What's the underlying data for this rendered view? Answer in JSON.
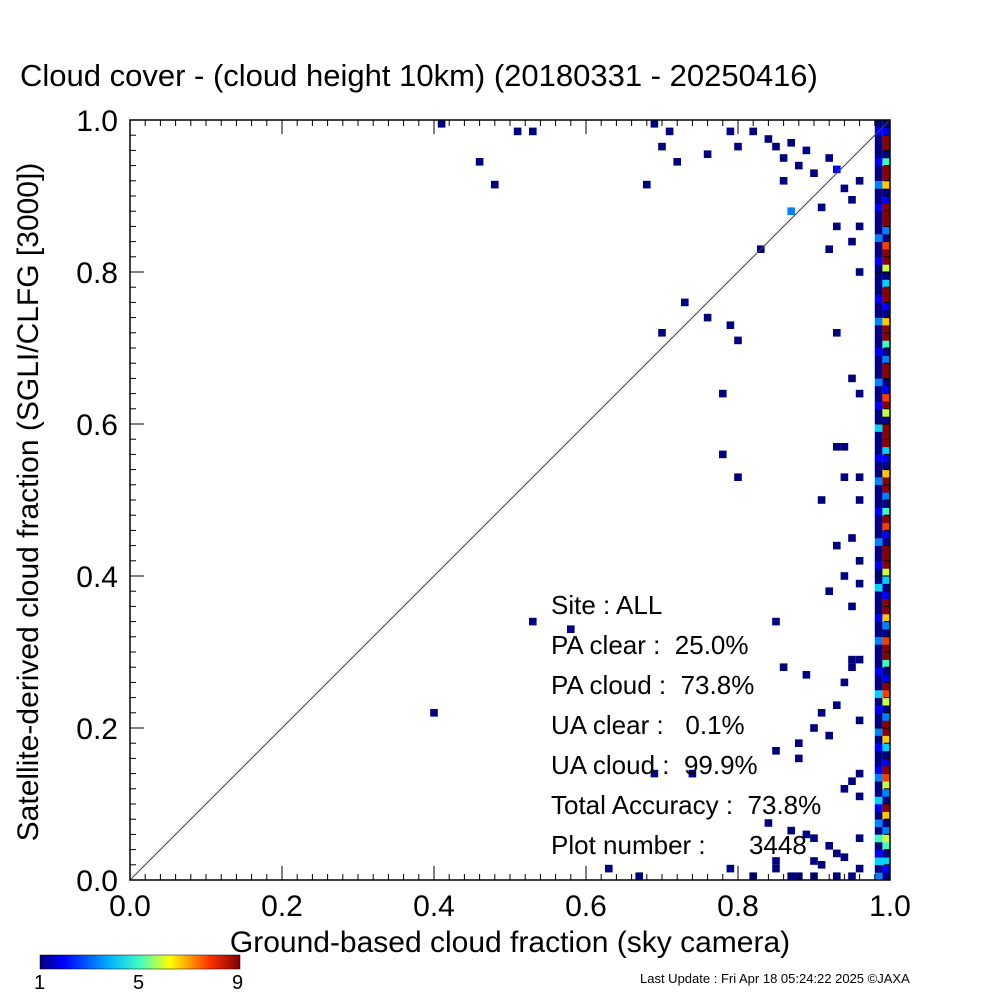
{
  "chart_data": {
    "type": "heatmap",
    "title": "Cloud cover - (cloud height 10km)  (20180331 - 20250416)",
    "xlabel": "Ground-based cloud fraction (sky camera)",
    "ylabel": "Satellite-derived cloud fraction (SGLI/CLFG [3000])",
    "xlim": [
      0.0,
      1.0
    ],
    "ylim": [
      0.0,
      1.0
    ],
    "xticks": [
      "0.0",
      "0.2",
      "0.4",
      "0.6",
      "0.8",
      "1.0"
    ],
    "yticks": [
      "0.0",
      "0.2",
      "0.4",
      "0.6",
      "0.8",
      "1.0"
    ],
    "grid": false,
    "reference_line": "y = x",
    "colorbar": {
      "min": 1,
      "max": 9,
      "tick_labels": [
        "1",
        "5",
        "9"
      ]
    },
    "points": [
      [
        0.41,
        0.995,
        1
      ],
      [
        0.51,
        0.985,
        1
      ],
      [
        0.53,
        0.985,
        1
      ],
      [
        0.69,
        0.995,
        1
      ],
      [
        0.71,
        0.985,
        1
      ],
      [
        0.46,
        0.945,
        1
      ],
      [
        0.48,
        0.915,
        1
      ],
      [
        0.68,
        0.915,
        1
      ],
      [
        0.7,
        0.965,
        1
      ],
      [
        0.72,
        0.945,
        1
      ],
      [
        0.76,
        0.955,
        1
      ],
      [
        0.79,
        0.985,
        1
      ],
      [
        0.8,
        0.965,
        1
      ],
      [
        0.82,
        0.985,
        1
      ],
      [
        0.84,
        0.975,
        1
      ],
      [
        0.85,
        0.965,
        1
      ],
      [
        0.86,
        0.95,
        1
      ],
      [
        0.87,
        0.97,
        1
      ],
      [
        0.88,
        0.94,
        1
      ],
      [
        0.89,
        0.96,
        1
      ],
      [
        0.86,
        0.92,
        1
      ],
      [
        0.87,
        0.88,
        3
      ],
      [
        0.83,
        0.83,
        1
      ],
      [
        0.91,
        0.885,
        1
      ],
      [
        0.9,
        0.93,
        1
      ],
      [
        0.92,
        0.95,
        1
      ],
      [
        0.93,
        0.935,
        2
      ],
      [
        0.94,
        0.91,
        1
      ],
      [
        0.95,
        0.895,
        1
      ],
      [
        0.96,
        0.92,
        1
      ],
      [
        0.93,
        0.86,
        1
      ],
      [
        0.92,
        0.83,
        1
      ],
      [
        0.96,
        0.86,
        1
      ],
      [
        0.95,
        0.84,
        1
      ],
      [
        0.96,
        0.8,
        1
      ],
      [
        0.73,
        0.76,
        1
      ],
      [
        0.7,
        0.72,
        1
      ],
      [
        0.76,
        0.74,
        1
      ],
      [
        0.79,
        0.73,
        1
      ],
      [
        0.8,
        0.71,
        1
      ],
      [
        0.93,
        0.72,
        1
      ],
      [
        0.78,
        0.64,
        1
      ],
      [
        0.95,
        0.66,
        1
      ],
      [
        0.96,
        0.64,
        1
      ],
      [
        0.93,
        0.57,
        1
      ],
      [
        0.94,
        0.57,
        1
      ],
      [
        0.78,
        0.56,
        1
      ],
      [
        0.8,
        0.53,
        1
      ],
      [
        0.94,
        0.53,
        1
      ],
      [
        0.96,
        0.53,
        1
      ],
      [
        0.96,
        0.5,
        1
      ],
      [
        0.91,
        0.5,
        1
      ],
      [
        0.93,
        0.44,
        1
      ],
      [
        0.95,
        0.45,
        1
      ],
      [
        0.96,
        0.42,
        1
      ],
      [
        0.94,
        0.4,
        1
      ],
      [
        0.96,
        0.39,
        1
      ],
      [
        0.92,
        0.38,
        1
      ],
      [
        0.95,
        0.36,
        1
      ],
      [
        0.53,
        0.34,
        1
      ],
      [
        0.58,
        0.33,
        1
      ],
      [
        0.85,
        0.34,
        1
      ],
      [
        0.95,
        0.29,
        1
      ],
      [
        0.96,
        0.29,
        1
      ],
      [
        0.95,
        0.28,
        1
      ],
      [
        0.86,
        0.28,
        1
      ],
      [
        0.89,
        0.27,
        1
      ],
      [
        0.94,
        0.26,
        1
      ],
      [
        0.4,
        0.22,
        1
      ],
      [
        0.91,
        0.22,
        1
      ],
      [
        0.93,
        0.23,
        1
      ],
      [
        0.96,
        0.21,
        1
      ],
      [
        0.9,
        0.2,
        1
      ],
      [
        0.92,
        0.19,
        1
      ],
      [
        0.88,
        0.18,
        1
      ],
      [
        0.85,
        0.17,
        1
      ],
      [
        0.88,
        0.16,
        1
      ],
      [
        0.69,
        0.14,
        1
      ],
      [
        0.74,
        0.14,
        1
      ],
      [
        0.96,
        0.14,
        1
      ],
      [
        0.95,
        0.13,
        1
      ],
      [
        0.94,
        0.12,
        1
      ],
      [
        0.96,
        0.11,
        1
      ],
      [
        0.84,
        0.075,
        1
      ],
      [
        0.87,
        0.065,
        1
      ],
      [
        0.89,
        0.06,
        1
      ],
      [
        0.9,
        0.055,
        1
      ],
      [
        0.92,
        0.045,
        1
      ],
      [
        0.93,
        0.035,
        1
      ],
      [
        0.96,
        0.055,
        1
      ],
      [
        0.9,
        0.025,
        1
      ],
      [
        0.91,
        0.02,
        1
      ],
      [
        0.94,
        0.03,
        1
      ],
      [
        0.85,
        0.025,
        1
      ],
      [
        0.85,
        0.015,
        1
      ],
      [
        0.63,
        0.015,
        1
      ],
      [
        0.67,
        0.005,
        1
      ],
      [
        0.79,
        0.015,
        1
      ],
      [
        0.82,
        0.005,
        1
      ],
      [
        0.87,
        0.005,
        1
      ],
      [
        0.88,
        0.005,
        1
      ],
      [
        0.9,
        0.005,
        1
      ],
      [
        0.93,
        0.005,
        1
      ],
      [
        0.95,
        0.005,
        1
      ],
      [
        0.96,
        0.015,
        1
      ]
    ],
    "right_edge_column": [
      1,
      2,
      4,
      1,
      5,
      6,
      3,
      1,
      7,
      9,
      1,
      3,
      6,
      8,
      9,
      2,
      1,
      4,
      7,
      9,
      9,
      3,
      1,
      6,
      8,
      9,
      2,
      1,
      5,
      9,
      9,
      8,
      1,
      3,
      7,
      9,
      9,
      2,
      1,
      4,
      6,
      9,
      9,
      9,
      1,
      2,
      8,
      9,
      5,
      1,
      3,
      9,
      9,
      7,
      1,
      2,
      4,
      9,
      9,
      9,
      1,
      6,
      9,
      8,
      2,
      1,
      9,
      9,
      3,
      1,
      5,
      9,
      9,
      7,
      1,
      2,
      9,
      9,
      4,
      1,
      6,
      9,
      9,
      8,
      1,
      3,
      9,
      9,
      9,
      2,
      1,
      7,
      9,
      9,
      5,
      1,
      9,
      9,
      2,
      1
    ],
    "near_edge_column": [
      3,
      1,
      4,
      2,
      1,
      5,
      1,
      3,
      1,
      2,
      4,
      1,
      1,
      3,
      2,
      1,
      1,
      2,
      1,
      3,
      1,
      1,
      2,
      1,
      4,
      1,
      1,
      2,
      1,
      1,
      1,
      3,
      1,
      1,
      2,
      1,
      1,
      1,
      4,
      1,
      1,
      2,
      1,
      1,
      3,
      1,
      1,
      1,
      2,
      1,
      1,
      1,
      3,
      1,
      1,
      2,
      1,
      1,
      1,
      4,
      1,
      1,
      2,
      1,
      1,
      3,
      1,
      1,
      1,
      2,
      1,
      1,
      1,
      3,
      1,
      1,
      2,
      1,
      1,
      1,
      1,
      2,
      1,
      1,
      3,
      1,
      1,
      1,
      2,
      1,
      1,
      3,
      1,
      1,
      2,
      1,
      1,
      1,
      2,
      1
    ]
  },
  "stats": {
    "site": "Site : ALL",
    "pa_clear": "PA clear :  25.0%",
    "pa_cloud": "PA cloud :  73.8%",
    "ua_clear": "UA clear :   0.1%",
    "ua_cloud": "UA cloud :  99.9%",
    "total": "Total Accuracy :  73.8%",
    "plot_number": "Plot number :      3448"
  },
  "footer": "Last Update : Fri Apr 18 05:24:22 2025  ©JAXA"
}
